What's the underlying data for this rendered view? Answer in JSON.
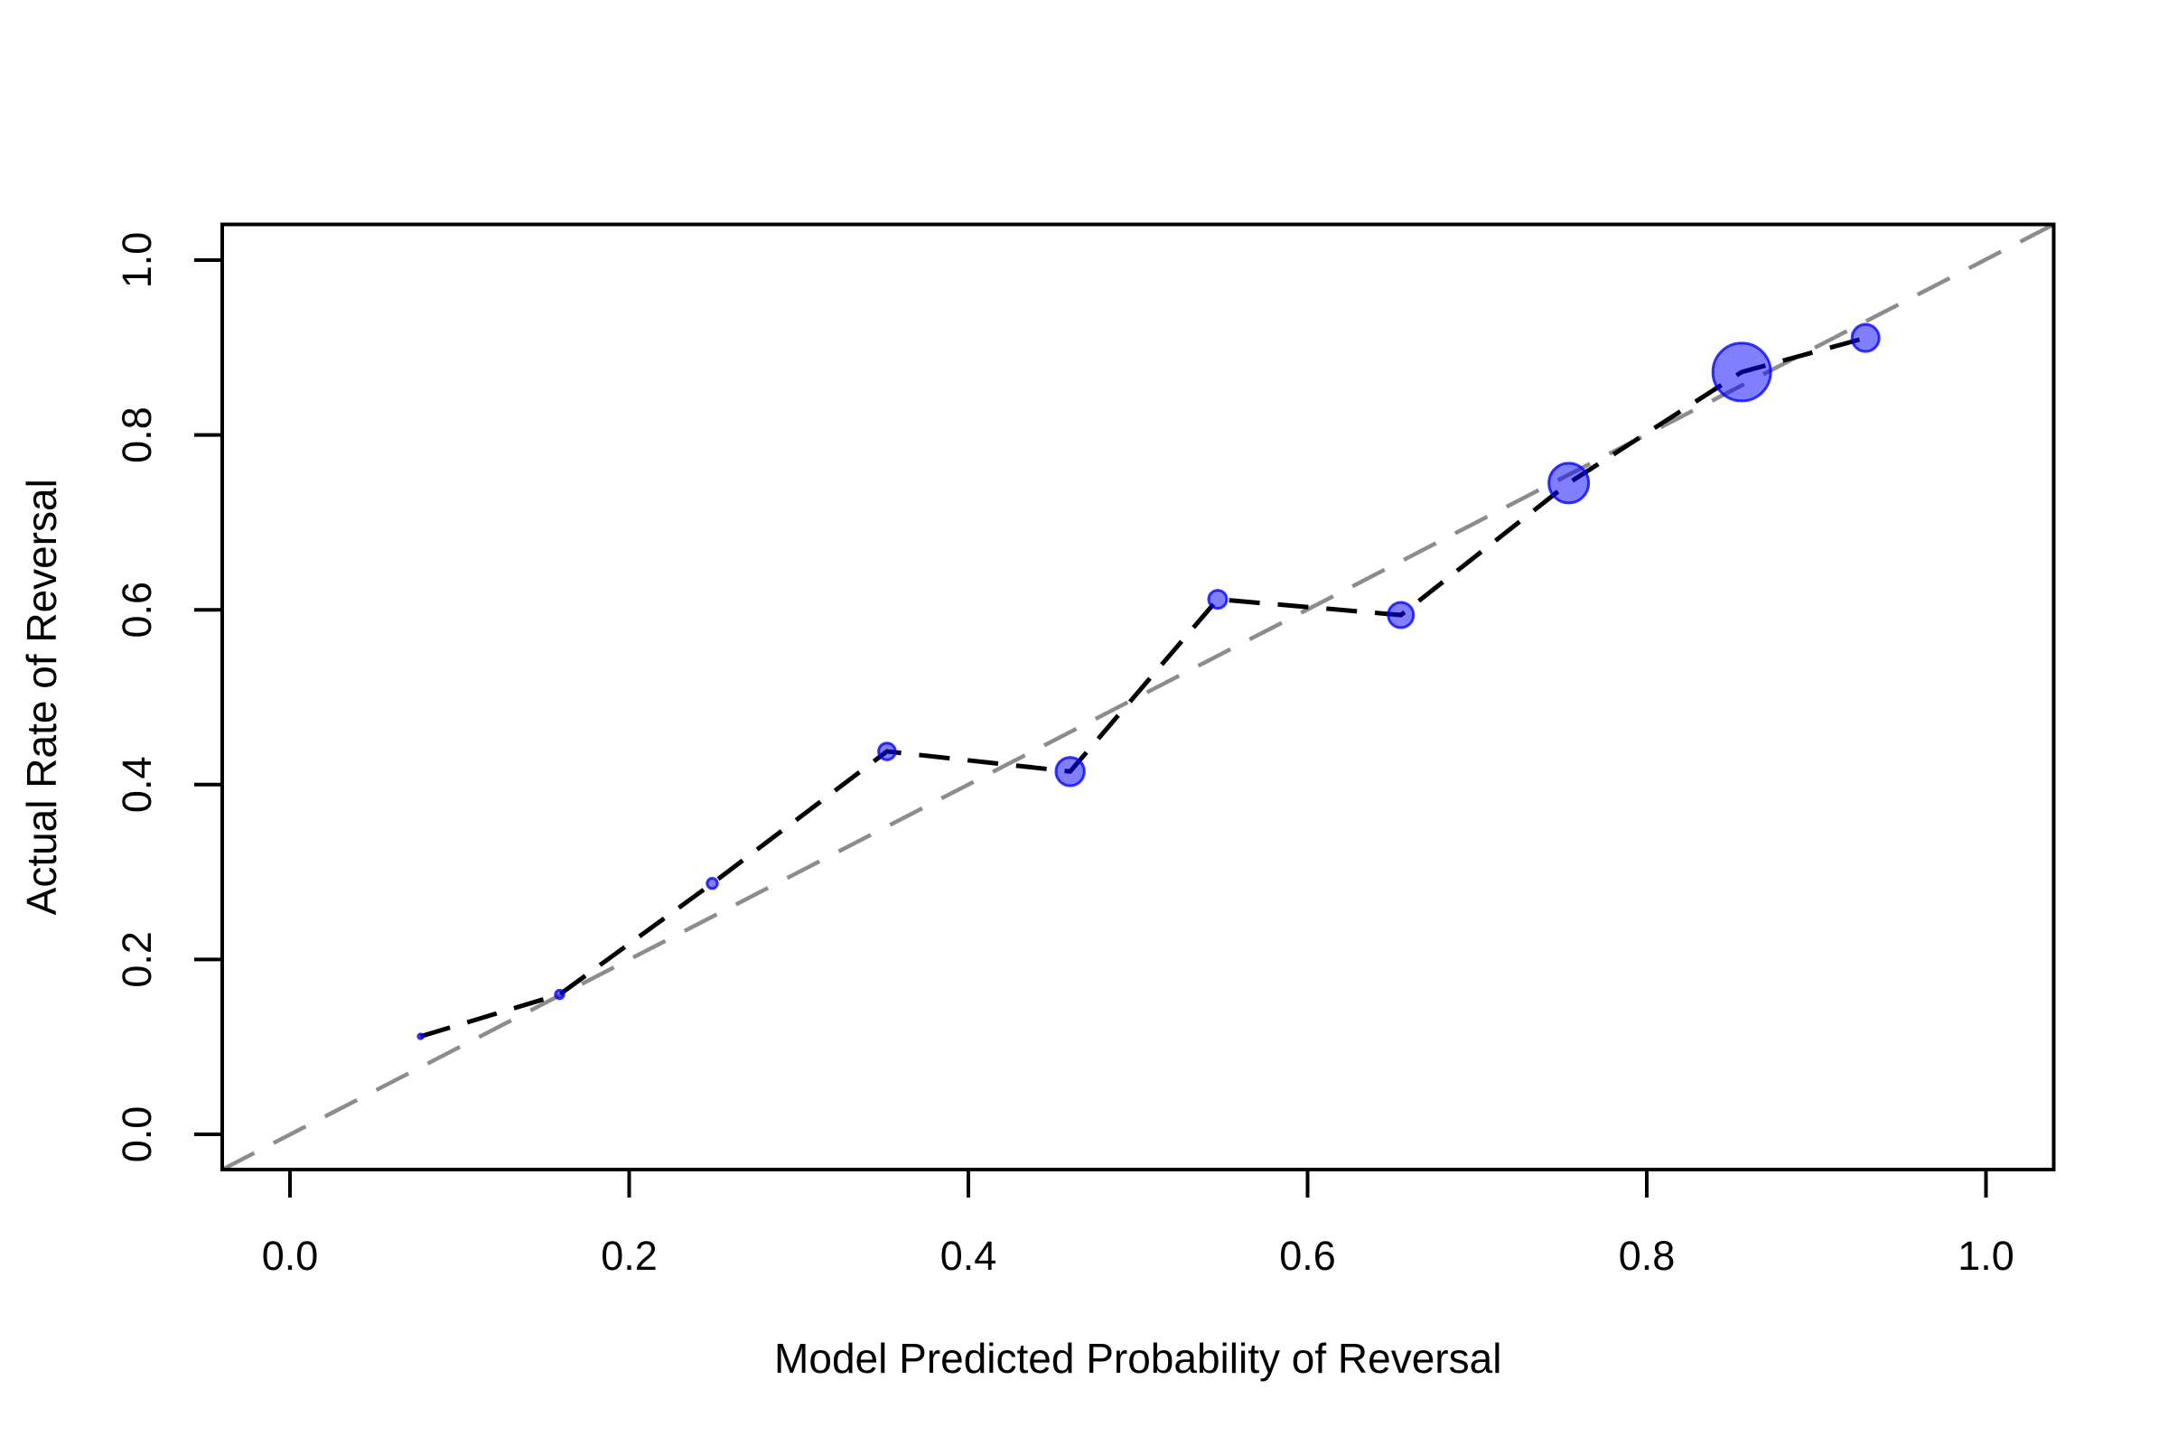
{
  "chart_data": {
    "type": "scatter",
    "subtype": "calibration-bubble-plot",
    "title": "",
    "xlabel": "Model Predicted Probability of Reversal",
    "ylabel": "Actual Rate of Reversal",
    "xlim": [
      -0.04,
      1.04
    ],
    "ylim": [
      -0.04,
      1.04
    ],
    "grid": false,
    "legend": "none",
    "x_ticks": [
      0.0,
      0.2,
      0.4,
      0.6,
      0.8,
      1.0
    ],
    "y_ticks": [
      0.0,
      0.2,
      0.4,
      0.6,
      0.8,
      1.0
    ],
    "x_tick_labels": [
      "0.0",
      "0.2",
      "0.4",
      "0.6",
      "0.8",
      "1.0"
    ],
    "y_tick_labels": [
      "0.0",
      "0.2",
      "0.4",
      "0.6",
      "0.8",
      "1.0"
    ],
    "reference_line": {
      "name": "identity-line",
      "type": "identity",
      "intercept": 0,
      "slope": 1,
      "style": "dashed",
      "color": "#8c8c8c"
    },
    "series": [
      {
        "name": "calibration-bins",
        "style": "dashed-line-with-bubbles",
        "line_color": "#000000",
        "line_style": "dashed",
        "marker_shape": "circle",
        "marker_fill": "rgba(0,0,255,0.5)",
        "marker_stroke": "rgba(0,0,255,0.78)",
        "points": [
          {
            "x": 0.077,
            "y": 0.112,
            "r": 2.7
          },
          {
            "x": 0.159,
            "y": 0.16,
            "r": 4.7
          },
          {
            "x": 0.249,
            "y": 0.287,
            "r": 5.7
          },
          {
            "x": 0.352,
            "y": 0.438,
            "r": 9.3
          },
          {
            "x": 0.46,
            "y": 0.415,
            "r": 15.7
          },
          {
            "x": 0.547,
            "y": 0.612,
            "r": 10.0
          },
          {
            "x": 0.655,
            "y": 0.594,
            "r": 14.0
          },
          {
            "x": 0.754,
            "y": 0.745,
            "r": 22.0
          },
          {
            "x": 0.856,
            "y": 0.872,
            "r": 32.0
          },
          {
            "x": 0.929,
            "y": 0.911,
            "r": 15.0
          }
        ]
      }
    ],
    "colors": {
      "background": "#ffffff",
      "axis": "#000000",
      "reference_line": "#8c8c8c",
      "series_line": "#000000",
      "bubble_fill": "rgba(0,0,255,0.5)",
      "bubble_stroke": "rgba(0,0,255,0.78)"
    }
  }
}
